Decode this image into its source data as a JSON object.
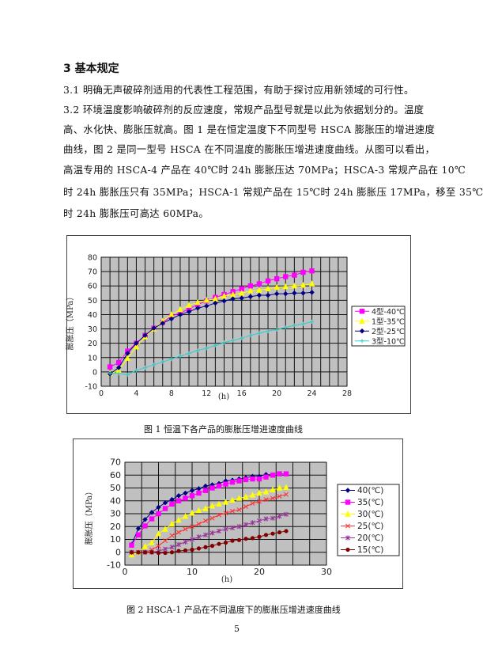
{
  "heading": "3  基本规定",
  "paragraphs": [
    "3.1  明确无声破碎剂适用的代表性工程范围，有助于探讨应用新领域的可行性。",
    "3.2  环境温度影响破碎剂的反应速度，常规产品型号就是以此为依据划分的。温度",
    "高、水化快、膨胀压就高。图 1 是在恒定温度下不同型号 HSCA 膨胀压的增进速度",
    "曲线，图 2 是同一型号 HSCA 在不同温度的膨胀压增进速度曲线。从图可以看出，",
    "高温专用的 HSCA-4  产品在 40℃时  24h 膨胀压达 70MPa；HSCA-3  常规产品在 10℃",
    "时  24h 膨胀压只有 35MPa；HSCA-1 常规产品在 15℃时 24h 膨胀压 17MPa，移至 35℃",
    "时 24h 膨胀压可高达 60MPa。"
  ],
  "chart_data": [
    {
      "type": "line",
      "caption": "图 1      恒温下各产品的膨胀压增进速度曲线",
      "xlabel": "(h)",
      "ylabel": "膨胀压（MPa）",
      "xlim": [
        0,
        28
      ],
      "ylim": [
        -10,
        80
      ],
      "xticks": [
        0,
        4,
        8,
        12,
        16,
        20,
        24,
        28
      ],
      "yticks": [
        -10,
        0,
        10,
        20,
        30,
        40,
        50,
        60,
        70,
        80
      ],
      "grid": true,
      "legend": "right",
      "plot_bg": "#c0c0c0",
      "x": [
        1,
        2,
        3,
        4,
        5,
        6,
        7,
        8,
        9,
        10,
        11,
        12,
        13,
        14,
        15,
        16,
        17,
        18,
        19,
        20,
        21,
        22,
        23,
        24
      ],
      "series": [
        {
          "name": "4型-40℃",
          "color": "#ff00ff",
          "marker": "square",
          "values": [
            3.5,
            6.5,
            14.5,
            20,
            25.5,
            30.5,
            34.5,
            39,
            41,
            44,
            47,
            49.5,
            52,
            54,
            56,
            58,
            60,
            61.5,
            63.5,
            65,
            66.5,
            67.5,
            69.5,
            70.5
          ]
        },
        {
          "name": "1型-35℃",
          "color": "#ffff00",
          "marker": "triangle",
          "values": [
            -1,
            1,
            9.5,
            17.5,
            24.5,
            30,
            35.5,
            40,
            43.5,
            46.5,
            48.5,
            50,
            51,
            53,
            54,
            55,
            56.5,
            57,
            58,
            59,
            59.5,
            60,
            60.5,
            61.5
          ]
        },
        {
          "name": "2型-25℃",
          "color": "#000080",
          "marker": "diamond",
          "values": [
            -1.5,
            3,
            13,
            20,
            25.5,
            30.5,
            34,
            37,
            40,
            42,
            44.5,
            46,
            48,
            49.5,
            51,
            51.5,
            52.5,
            53.5,
            53.5,
            54.5,
            54.5,
            55,
            55,
            55.5
          ]
        },
        {
          "name": "3型-10℃",
          "color": "#33cccc",
          "marker": "cross",
          "values": [
            -1,
            -1,
            -2,
            1,
            3,
            5,
            7,
            9,
            11,
            13,
            15,
            16.5,
            18.5,
            20.5,
            22,
            23.5,
            25.5,
            27,
            28.5,
            29.5,
            31,
            32.5,
            33.5,
            35
          ]
        }
      ]
    },
    {
      "type": "line",
      "caption": "图 2      HSCA-1 产品在不同温度下的膨胀压增进速度曲线",
      "xlabel": "(h)",
      "ylabel": "膨胀压（MPa）",
      "xlim": [
        0,
        30
      ],
      "ylim": [
        -10,
        70
      ],
      "xticks": [
        0,
        10,
        20,
        30
      ],
      "yticks": [
        -10,
        0,
        10,
        20,
        30,
        40,
        50,
        60,
        70
      ],
      "grid": true,
      "legend": "right",
      "plot_bg": "#c0c0c0",
      "x": [
        1,
        2,
        3,
        4,
        5,
        6,
        7,
        8,
        9,
        10,
        11,
        12,
        13,
        14,
        15,
        16,
        17,
        18,
        19,
        20,
        21,
        22,
        23,
        24
      ],
      "series": [
        {
          "name": "40(℃)",
          "color": "#000080",
          "marker": "diamond",
          "values": [
            6,
            18.5,
            25.5,
            31,
            35,
            38.5,
            41,
            44,
            46,
            48,
            49.5,
            51.5,
            52.5,
            53.5,
            55.5,
            56,
            57,
            58,
            59,
            59,
            60.5,
            60,
            61,
            61
          ]
        },
        {
          "name": "35(℃)",
          "color": "#ff00ff",
          "marker": "square",
          "values": [
            5.5,
            13.5,
            20.5,
            26,
            30,
            34,
            37.5,
            40,
            42,
            44,
            46,
            48,
            50,
            51.5,
            53,
            54.5,
            55.5,
            56.5,
            57,
            57,
            58.5,
            60,
            61,
            61
          ]
        },
        {
          "name": "30(℃)",
          "color": "#ffff00",
          "marker": "triangle",
          "values": [
            -2,
            0,
            4.5,
            7.5,
            14.5,
            18,
            22,
            25,
            28,
            30.5,
            32.5,
            34,
            36,
            37.5,
            39,
            40.5,
            42,
            43,
            44.5,
            46,
            47,
            48.5,
            50,
            50.5
          ]
        },
        {
          "name": "25(℃)",
          "color": "#ff3333",
          "marker": "x",
          "values": [
            0,
            0,
            0,
            2,
            5,
            9,
            13,
            15.5,
            18,
            20,
            22,
            24.5,
            26.5,
            29,
            30.5,
            32,
            33,
            35.5,
            38,
            39.5,
            41,
            42,
            43.5,
            45
          ]
        },
        {
          "name": "20(℃)",
          "color": "#993399",
          "marker": "star",
          "values": [
            0,
            0,
            0,
            0,
            1,
            2.5,
            4,
            6,
            8,
            10,
            12,
            13.5,
            15,
            16.5,
            18,
            19,
            20,
            21.5,
            23,
            24.5,
            26,
            26.5,
            28,
            29.5
          ]
        },
        {
          "name": "15(℃)",
          "color": "#800000",
          "marker": "circle",
          "values": [
            0,
            0,
            0,
            0,
            -0.5,
            -0.5,
            0,
            1,
            1.5,
            2,
            3,
            4,
            5,
            6.5,
            7.5,
            9,
            9.5,
            10.5,
            11,
            12,
            13.5,
            14.5,
            15.5,
            16.5
          ]
        }
      ]
    }
  ],
  "page_number": "5"
}
